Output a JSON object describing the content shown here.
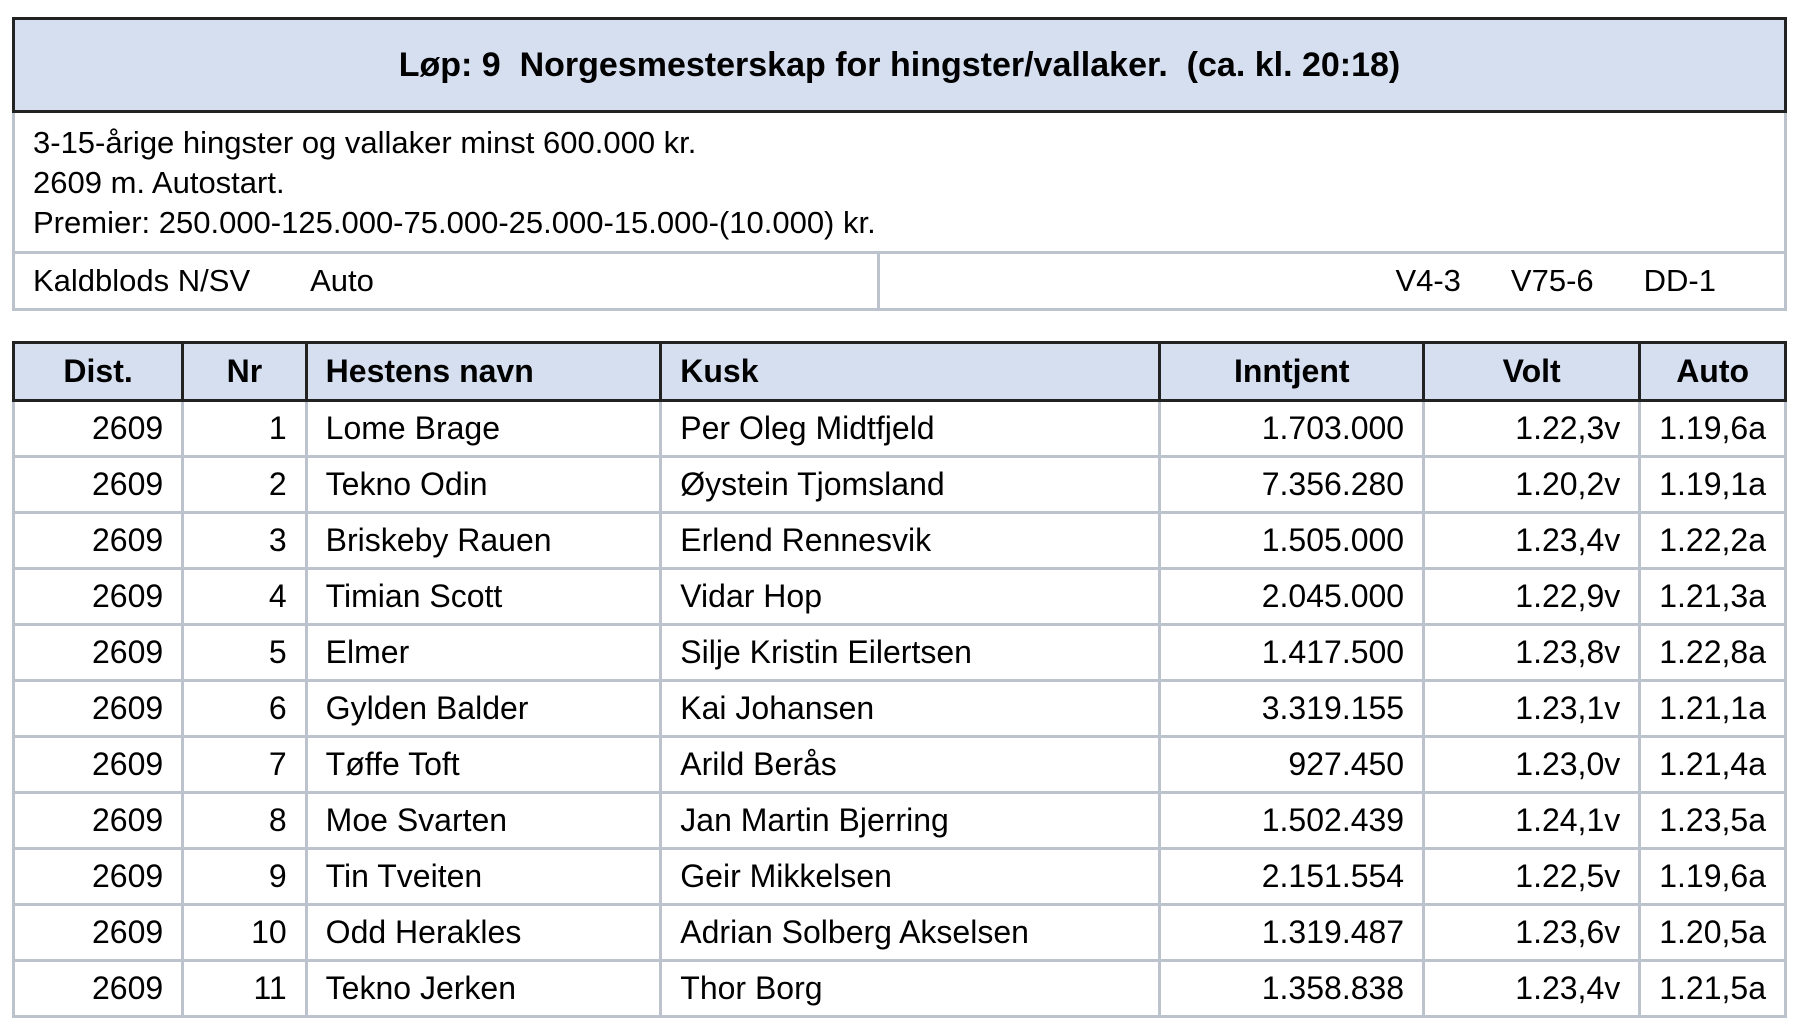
{
  "race": {
    "title": "Løp: 9  Norgesmesterskap for hingster/vallaker.  (ca. kl. 20:18)",
    "conditions": "3-15-årige hingster og vallaker minst 600.000 kr.",
    "distance_start": "2609 m. Autostart.",
    "prizes": "Premier: 250.000-125.000-75.000-25.000-15.000-(10.000) kr.",
    "breed": "Kaldblods N/SV",
    "start_type": "Auto",
    "games": [
      "V4-3",
      "V75-6",
      "DD-1"
    ]
  },
  "table": {
    "headers": {
      "dist": "Dist.",
      "nr": "Nr",
      "name": "Hestens navn",
      "kusk": "Kusk",
      "inntjent": "Inntjent",
      "volt": "Volt",
      "auto": "Auto"
    },
    "rows": [
      {
        "dist": "2609",
        "nr": "1",
        "name": "Lome Brage",
        "kusk": "Per Oleg Midtfjeld",
        "inntjent": "1.703.000",
        "volt": "1.22,3v",
        "auto": "1.19,6a"
      },
      {
        "dist": "2609",
        "nr": "2",
        "name": "Tekno Odin",
        "kusk": "Øystein Tjomsland",
        "inntjent": "7.356.280",
        "volt": "1.20,2v",
        "auto": "1.19,1a"
      },
      {
        "dist": "2609",
        "nr": "3",
        "name": "Briskeby Rauen",
        "kusk": "Erlend Rennesvik",
        "inntjent": "1.505.000",
        "volt": "1.23,4v",
        "auto": "1.22,2a"
      },
      {
        "dist": "2609",
        "nr": "4",
        "name": "Timian Scott",
        "kusk": "Vidar Hop",
        "inntjent": "2.045.000",
        "volt": "1.22,9v",
        "auto": "1.21,3a"
      },
      {
        "dist": "2609",
        "nr": "5",
        "name": "Elmer",
        "kusk": "Silje Kristin Eilertsen",
        "inntjent": "1.417.500",
        "volt": "1.23,8v",
        "auto": "1.22,8a"
      },
      {
        "dist": "2609",
        "nr": "6",
        "name": "Gylden Balder",
        "kusk": "Kai Johansen",
        "inntjent": "3.319.155",
        "volt": "1.23,1v",
        "auto": "1.21,1a"
      },
      {
        "dist": "2609",
        "nr": "7",
        "name": "Tøffe Toft",
        "kusk": "Arild Berås",
        "inntjent": "927.450",
        "volt": "1.23,0v",
        "auto": "1.21,4a"
      },
      {
        "dist": "2609",
        "nr": "8",
        "name": "Moe Svarten",
        "kusk": "Jan Martin Bjerring",
        "inntjent": "1.502.439",
        "volt": "1.24,1v",
        "auto": "1.23,5a"
      },
      {
        "dist": "2609",
        "nr": "9",
        "name": "Tin Tveiten",
        "kusk": "Geir Mikkelsen",
        "inntjent": "2.151.554",
        "volt": "1.22,5v",
        "auto": "1.19,6a"
      },
      {
        "dist": "2609",
        "nr": "10",
        "name": "Odd Herakles",
        "kusk": "Adrian Solberg Akselsen",
        "inntjent": "1.319.487",
        "volt": "1.23,6v",
        "auto": "1.20,5a"
      },
      {
        "dist": "2609",
        "nr": "11",
        "name": "Tekno Jerken",
        "kusk": "Thor Borg",
        "inntjent": "1.358.838",
        "volt": "1.23,4v",
        "auto": "1.21,5a"
      }
    ]
  }
}
